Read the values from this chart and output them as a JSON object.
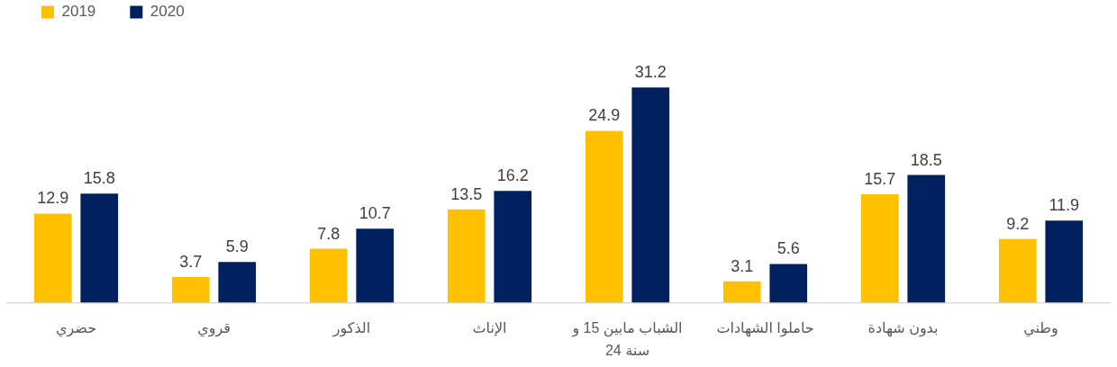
{
  "chart_data": {
    "type": "bar",
    "categories": [
      "حضري",
      "قروي",
      "الذكور",
      "الإناث",
      "الشباب مابين 15 و 24 سنة",
      "حاملوا الشهادات",
      "بدون شهادة",
      "وطني"
    ],
    "series": [
      {
        "name": "2019",
        "color": "#ffc000",
        "values": [
          12.9,
          3.7,
          7.8,
          13.5,
          24.9,
          3.1,
          15.7,
          9.2
        ]
      },
      {
        "name": "2020",
        "color": "#002060",
        "values": [
          15.8,
          5.9,
          10.7,
          16.2,
          31.2,
          5.6,
          18.5,
          11.9
        ]
      }
    ],
    "data_labels": true,
    "legend": "top left"
  }
}
